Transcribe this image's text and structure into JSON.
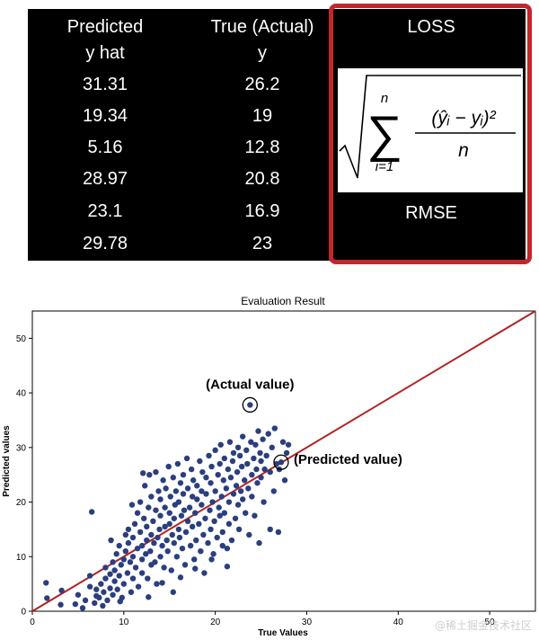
{
  "table": {
    "headers": [
      {
        "line1": "Predicted",
        "line2": "y hat"
      },
      {
        "line1": "True (Actual)",
        "line2": "y"
      },
      {
        "line1": "LOSS",
        "line2": ""
      }
    ],
    "predicted": [
      "31.31",
      "19.34",
      "5.16",
      "28.97",
      "23.1",
      "29.78"
    ],
    "actual": [
      "26.2",
      "19",
      "12.8",
      "20.8",
      "16.9",
      "23"
    ],
    "loss_label": "RMSE",
    "highlight_color": "#c0272d"
  },
  "formula": {
    "upper_limit": "n",
    "lower_limit": "i=1",
    "numerator": "(ŷᵢ − yᵢ)²",
    "denominator": "n"
  },
  "chart_data": {
    "type": "scatter",
    "title": "Evaluation Result",
    "xlabel": "True Values",
    "ylabel": "Predicted values",
    "xlim": [
      0,
      55
    ],
    "ylim": [
      0,
      55
    ],
    "xticks": [
      0,
      10,
      20,
      30,
      40,
      50
    ],
    "yticks": [
      0,
      10,
      20,
      30,
      40,
      50
    ],
    "point_color": "#2b3f7e",
    "line_color": "#b22222",
    "reference_line": {
      "from": [
        0,
        0
      ],
      "to": [
        55,
        55
      ]
    },
    "annotations": [
      {
        "text": "(Actual value)",
        "x": 23.8,
        "y": 37.8
      },
      {
        "text": "(Predicted  value)",
        "x": 27.2,
        "y": 27.3
      }
    ],
    "points": [
      [
        1.5,
        5.2
      ],
      [
        1.6,
        2.4
      ],
      [
        3.1,
        1.2
      ],
      [
        3.2,
        3.8
      ],
      [
        4.7,
        1.3
      ],
      [
        5.0,
        3.0
      ],
      [
        5.5,
        0.6
      ],
      [
        5.8,
        2.0
      ],
      [
        6.3,
        6.5
      ],
      [
        6.5,
        18.2
      ],
      [
        6.3,
        4.5
      ],
      [
        6.8,
        1.5
      ],
      [
        7.0,
        2.8
      ],
      [
        7.0,
        4.0
      ],
      [
        7.3,
        2.5
      ],
      [
        7.5,
        5.0
      ],
      [
        7.7,
        1.0
      ],
      [
        7.8,
        3.5
      ],
      [
        8.0,
        6.0
      ],
      [
        8.0,
        8.0
      ],
      [
        8.2,
        2.0
      ],
      [
        8.5,
        4.2
      ],
      [
        8.5,
        6.8
      ],
      [
        8.8,
        3.0
      ],
      [
        8.8,
        9.0
      ],
      [
        9.0,
        5.5
      ],
      [
        9.0,
        7.5
      ],
      [
        9.2,
        10.5
      ],
      [
        9.3,
        4.0
      ],
      [
        9.5,
        6.5
      ],
      [
        9.5,
        12.0
      ],
      [
        9.7,
        8.5
      ],
      [
        9.8,
        2.5
      ],
      [
        10.0,
        5.0
      ],
      [
        10.0,
        9.5
      ],
      [
        10.2,
        11.0
      ],
      [
        10.2,
        14.0
      ],
      [
        10.4,
        7.0
      ],
      [
        10.5,
        12.5
      ],
      [
        10.5,
        15.0
      ],
      [
        10.7,
        9.0
      ],
      [
        10.8,
        3.5
      ],
      [
        11.0,
        6.0
      ],
      [
        11.0,
        10.0
      ],
      [
        11.0,
        13.5
      ],
      [
        11.2,
        16.0
      ],
      [
        11.3,
        8.0
      ],
      [
        11.5,
        11.5
      ],
      [
        11.5,
        18.0
      ],
      [
        11.6,
        4.5
      ],
      [
        11.8,
        14.5
      ],
      [
        11.8,
        20.0
      ],
      [
        12.0,
        7.0
      ],
      [
        12.0,
        9.5
      ],
      [
        12.0,
        12.0
      ],
      [
        12.2,
        17.0
      ],
      [
        12.3,
        23.0
      ],
      [
        12.4,
        10.5
      ],
      [
        12.5,
        13.0
      ],
      [
        12.5,
        15.5
      ],
      [
        12.6,
        6.0
      ],
      [
        12.7,
        19.0
      ],
      [
        12.8,
        25.0
      ],
      [
        12.9,
        11.0
      ],
      [
        13.0,
        8.5
      ],
      [
        13.0,
        14.0
      ],
      [
        13.0,
        21.0
      ],
      [
        13.2,
        16.5
      ],
      [
        13.3,
        12.5
      ],
      [
        13.4,
        9.0
      ],
      [
        13.5,
        18.5
      ],
      [
        13.5,
        25.5
      ],
      [
        13.6,
        5.0
      ],
      [
        13.7,
        13.5
      ],
      [
        13.8,
        22.0
      ],
      [
        13.9,
        15.0
      ],
      [
        14.0,
        10.0
      ],
      [
        14.0,
        17.5
      ],
      [
        14.0,
        20.5
      ],
      [
        14.2,
        12.0
      ],
      [
        14.3,
        24.0
      ],
      [
        14.4,
        8.0
      ],
      [
        14.5,
        15.5
      ],
      [
        14.5,
        19.0
      ],
      [
        14.6,
        22.5
      ],
      [
        14.7,
        13.0
      ],
      [
        14.8,
        11.0
      ],
      [
        14.9,
        26.5
      ],
      [
        15.0,
        16.0
      ],
      [
        15.0,
        18.0
      ],
      [
        15.1,
        21.0
      ],
      [
        15.2,
        7.5
      ],
      [
        15.3,
        14.0
      ],
      [
        15.4,
        24.5
      ],
      [
        15.5,
        12.5
      ],
      [
        15.5,
        17.0
      ],
      [
        15.6,
        19.5
      ],
      [
        15.7,
        22.0
      ],
      [
        15.8,
        10.0
      ],
      [
        15.9,
        27.0
      ],
      [
        16.0,
        15.0
      ],
      [
        16.0,
        20.0
      ],
      [
        16.1,
        13.5
      ],
      [
        16.2,
        23.5
      ],
      [
        16.3,
        17.5
      ],
      [
        16.4,
        11.5
      ],
      [
        16.5,
        21.5
      ],
      [
        16.5,
        25.0
      ],
      [
        16.6,
        18.5
      ],
      [
        16.7,
        8.5
      ],
      [
        16.8,
        14.5
      ],
      [
        16.9,
        28.0
      ],
      [
        17.0,
        16.5
      ],
      [
        17.0,
        22.5
      ],
      [
        17.2,
        19.0
      ],
      [
        17.3,
        12.0
      ],
      [
        17.4,
        26.0
      ],
      [
        17.5,
        15.5
      ],
      [
        17.5,
        21.0
      ],
      [
        17.6,
        24.0
      ],
      [
        17.7,
        9.5
      ],
      [
        17.8,
        18.0
      ],
      [
        17.9,
        13.0
      ],
      [
        18.0,
        20.5
      ],
      [
        18.0,
        23.0
      ],
      [
        18.2,
        16.0
      ],
      [
        18.3,
        27.5
      ],
      [
        18.4,
        11.0
      ],
      [
        18.5,
        19.5
      ],
      [
        18.5,
        22.0
      ],
      [
        18.6,
        25.5
      ],
      [
        18.7,
        14.0
      ],
      [
        18.8,
        7.0
      ],
      [
        18.9,
        17.0
      ],
      [
        19.0,
        21.5
      ],
      [
        19.0,
        24.5
      ],
      [
        19.2,
        12.5
      ],
      [
        19.3,
        28.5
      ],
      [
        19.4,
        18.5
      ],
      [
        19.5,
        15.0
      ],
      [
        19.5,
        23.5
      ],
      [
        19.6,
        26.5
      ],
      [
        19.7,
        20.0
      ],
      [
        19.8,
        10.5
      ],
      [
        19.9,
        16.5
      ],
      [
        20.0,
        22.0
      ],
      [
        20.0,
        29.5
      ],
      [
        20.2,
        13.5
      ],
      [
        20.3,
        25.0
      ],
      [
        20.4,
        19.0
      ],
      [
        20.5,
        17.5
      ],
      [
        20.5,
        27.0
      ],
      [
        20.6,
        30.5
      ],
      [
        20.7,
        21.0
      ],
      [
        20.8,
        14.5
      ],
      [
        20.9,
        24.0
      ],
      [
        21.0,
        18.0
      ],
      [
        21.0,
        28.0
      ],
      [
        21.2,
        22.5
      ],
      [
        21.3,
        11.5
      ],
      [
        21.4,
        26.0
      ],
      [
        21.5,
        16.0
      ],
      [
        21.5,
        20.0
      ],
      [
        21.6,
        31.0
      ],
      [
        21.7,
        24.5
      ],
      [
        21.8,
        13.0
      ],
      [
        21.9,
        27.5
      ],
      [
        22.0,
        21.5
      ],
      [
        22.0,
        29.0
      ],
      [
        22.2,
        17.0
      ],
      [
        22.3,
        23.0
      ],
      [
        22.4,
        25.5
      ],
      [
        22.5,
        19.5
      ],
      [
        22.5,
        30.0
      ],
      [
        22.6,
        15.0
      ],
      [
        22.7,
        28.5
      ],
      [
        22.8,
        22.0
      ],
      [
        22.9,
        26.5
      ],
      [
        23.0,
        20.5
      ],
      [
        23.0,
        32.0
      ],
      [
        23.2,
        24.0
      ],
      [
        23.3,
        18.0
      ],
      [
        23.4,
        29.5
      ],
      [
        23.5,
        27.0
      ],
      [
        23.6,
        22.5
      ],
      [
        23.7,
        14.0
      ],
      [
        23.8,
        37.8
      ],
      [
        23.9,
        31.0
      ],
      [
        24.0,
        25.0
      ],
      [
        24.0,
        21.0
      ],
      [
        24.2,
        28.0
      ],
      [
        24.3,
        17.5
      ],
      [
        24.4,
        30.5
      ],
      [
        24.5,
        26.0
      ],
      [
        24.6,
        23.5
      ],
      [
        24.7,
        33.0
      ],
      [
        24.8,
        12.5
      ],
      [
        24.9,
        29.0
      ],
      [
        25.0,
        24.5
      ],
      [
        25.0,
        27.5
      ],
      [
        25.2,
        31.5
      ],
      [
        25.3,
        20.0
      ],
      [
        25.4,
        26.0
      ],
      [
        25.6,
        28.5
      ],
      [
        25.8,
        32.5
      ],
      [
        26.0,
        15.0
      ],
      [
        26.0,
        25.5
      ],
      [
        26.2,
        30.0
      ],
      [
        26.4,
        22.0
      ],
      [
        26.5,
        33.5
      ],
      [
        26.7,
        27.0
      ],
      [
        26.9,
        14.5
      ],
      [
        27.0,
        26.0
      ],
      [
        27.2,
        27.3
      ],
      [
        27.4,
        31.0
      ],
      [
        27.6,
        24.0
      ],
      [
        27.8,
        29.0
      ],
      [
        28.0,
        30.5
      ],
      [
        15.4,
        3.5
      ],
      [
        17.8,
        7.8
      ],
      [
        9.6,
        1.8
      ],
      [
        12.7,
        2.6
      ],
      [
        14.2,
        5.2
      ],
      [
        19.6,
        9.5
      ],
      [
        21.3,
        8.2
      ],
      [
        8.6,
        13.0
      ],
      [
        10.9,
        19.5
      ],
      [
        12.1,
        25.3
      ],
      [
        16.2,
        6.2
      ],
      [
        20.8,
        12.0
      ]
    ]
  }
}
